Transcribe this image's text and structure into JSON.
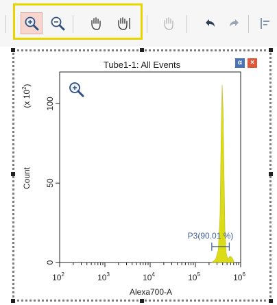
{
  "toolbar": {
    "buttons": [
      {
        "name": "zoom-in",
        "icon": "zoom-in-icon",
        "active": true
      },
      {
        "name": "zoom-out",
        "icon": "zoom-out-icon"
      },
      {
        "name": "pan",
        "icon": "hand-icon"
      },
      {
        "name": "pan-axis",
        "icon": "hand-axis-icon"
      },
      {
        "name": "pan-disabled",
        "icon": "hand-disabled-icon",
        "disabled": true
      },
      {
        "name": "undo",
        "icon": "undo-icon"
      },
      {
        "name": "redo",
        "icon": "redo-icon"
      },
      {
        "name": "align",
        "icon": "align-left-icon"
      }
    ]
  },
  "plot": {
    "title": "Tube1-1: All Events",
    "corner_buttons": [
      "α",
      "×"
    ],
    "colors": {
      "histogram": "#d8d800",
      "gate": "#3d5e9e",
      "axis": "#202020",
      "close": "#e05a3a",
      "alpha": "#4a74b8"
    }
  },
  "chart_data": {
    "type": "area",
    "title": "Tube1-1: All Events",
    "xlabel": "Alexa700-A",
    "ylabel": "Count",
    "y_multiplier_label": "(x 10",
    "y_multiplier_exp": "2",
    "x_scale": "log",
    "xlim": [
      100,
      1000000
    ],
    "ylim": [
      0,
      120
    ],
    "x_ticks": [
      {
        "base": "10",
        "exp": "2"
      },
      {
        "base": "10",
        "exp": "3"
      },
      {
        "base": "10",
        "exp": "4"
      },
      {
        "base": "10",
        "exp": "5"
      },
      {
        "base": "10",
        "exp": "6"
      }
    ],
    "y_ticks": [
      "0",
      "50",
      "100"
    ],
    "series": [
      {
        "x": [
          230000,
          280000,
          320000,
          350000,
          370000,
          390000,
          410000,
          430000,
          450000,
          480000,
          520000,
          580000,
          650000,
          720000
        ],
        "values": [
          0,
          2,
          8,
          30,
          80,
          112,
          95,
          55,
          20,
          6,
          2,
          4,
          3,
          0
        ]
      }
    ],
    "gate": {
      "label": "P3(90.01 %)",
      "x_start": 230000,
      "x_end": 560000,
      "y": 10
    }
  }
}
